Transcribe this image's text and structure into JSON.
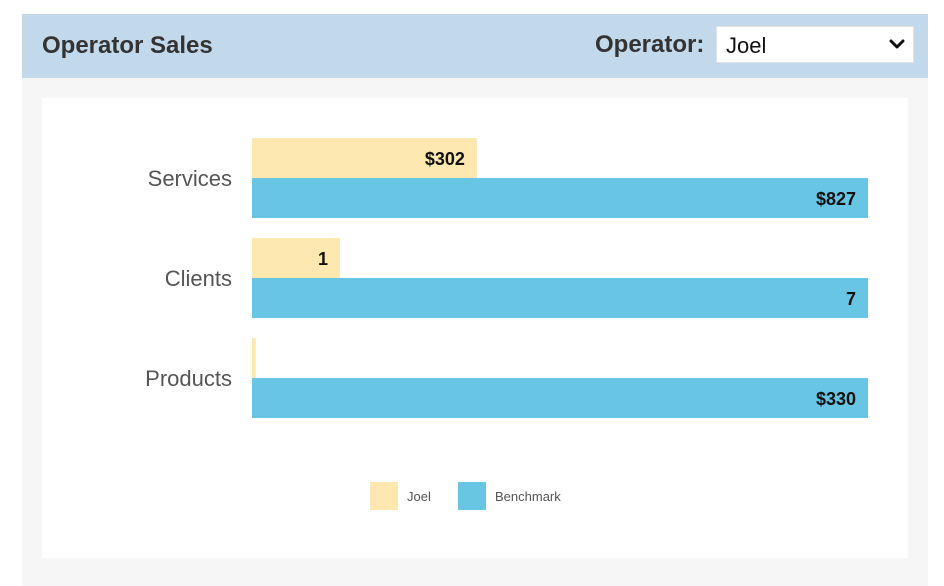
{
  "header": {
    "title": "Operator Sales",
    "operator_label": "Operator:",
    "operator_value": "Joel"
  },
  "colors": {
    "header_bg": "#c2d9eb",
    "operator_series": "#fde8b0",
    "benchmark_series": "#68c6e4"
  },
  "icons": {
    "select_arrow": "chevron-down-icon"
  },
  "chart_data": {
    "type": "bar",
    "orientation": "horizontal",
    "categories": [
      "Services",
      "Clients",
      "Products"
    ],
    "series": [
      {
        "name": "Joel",
        "values": [
          302,
          1,
          2
        ],
        "labels": [
          "$302",
          "1",
          ""
        ],
        "color": "#fde8b0"
      },
      {
        "name": "Benchmark",
        "values": [
          827,
          7,
          330
        ],
        "labels": [
          "$827",
          "7",
          "$330"
        ],
        "color": "#68c6e4"
      }
    ],
    "scale": "each category scaled to its own benchmark value",
    "legend": "bottom-center",
    "grid": false
  }
}
